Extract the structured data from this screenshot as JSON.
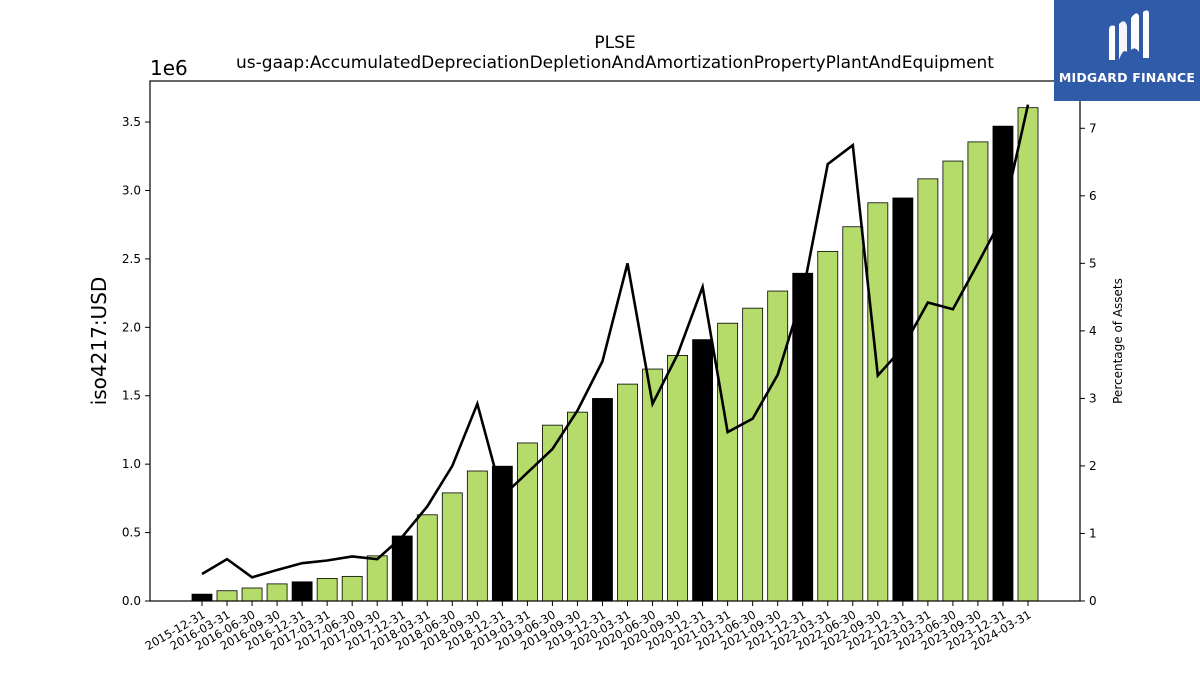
{
  "chart_data": {
    "type": "bar",
    "title": "PLSE",
    "subtitle": "us-gaap:AccumulatedDepreciationDepletionAndAmortizationPropertyPlantAndEquipment",
    "ylabel": "iso4217:USD",
    "y2label": "Percentage of Assets",
    "y_offset_label": "1e6",
    "ylim": [
      0,
      3.8
    ],
    "y2lim": [
      0,
      7.7
    ],
    "yticks": [
      0.0,
      0.5,
      1.0,
      1.5,
      2.0,
      2.5,
      3.0,
      3.5
    ],
    "ytick_labels": [
      "0.0",
      "0.5",
      "1.0",
      "1.5",
      "2.0",
      "2.5",
      "3.0",
      "3.5"
    ],
    "y2ticks": [
      0,
      1,
      2,
      3,
      4,
      5,
      6,
      7
    ],
    "y2tick_labels": [
      "0",
      "1",
      "2",
      "3",
      "4",
      "5",
      "6",
      "7"
    ],
    "categories": [
      "2015-12-31",
      "2016-03-31",
      "2016-06-30",
      "2016-09-30",
      "2016-12-31",
      "2017-03-31",
      "2017-06-30",
      "2017-09-30",
      "2017-12-31",
      "2018-03-31",
      "2018-06-30",
      "2018-09-30",
      "2018-12-31",
      "2019-03-31",
      "2019-06-30",
      "2019-09-30",
      "2019-12-31",
      "2020-03-31",
      "2020-06-30",
      "2020-09-30",
      "2020-12-31",
      "2021-03-31",
      "2021-06-30",
      "2021-09-30",
      "2021-12-31",
      "2022-03-31",
      "2022-06-30",
      "2022-09-30",
      "2022-12-31",
      "2023-03-31",
      "2023-06-30",
      "2023-09-30",
      "2023-12-31",
      "2024-03-31"
    ],
    "series": [
      {
        "type": "bar",
        "values": [
          0.05,
          0.075,
          0.095,
          0.125,
          0.14,
          0.165,
          0.18,
          0.33,
          0.475,
          0.63,
          0.79,
          0.95,
          0.985,
          1.155,
          1.285,
          1.38,
          1.48,
          1.585,
          1.695,
          1.795,
          1.91,
          2.03,
          2.14,
          2.265,
          2.395,
          2.555,
          2.735,
          2.91,
          2.945,
          3.085,
          3.215,
          3.355,
          3.47,
          3.605
        ],
        "highlight": [
          true,
          false,
          false,
          false,
          true,
          false,
          false,
          false,
          true,
          false,
          false,
          false,
          true,
          false,
          false,
          false,
          true,
          false,
          false,
          false,
          true,
          false,
          false,
          false,
          true,
          false,
          false,
          false,
          true,
          false,
          false,
          false,
          true,
          false
        ]
      },
      {
        "type": "line",
        "axis": "right",
        "values": [
          0.4,
          0.62,
          0.35,
          0.46,
          0.56,
          0.6,
          0.66,
          0.62,
          0.95,
          1.4,
          2.0,
          2.92,
          1.55,
          1.9,
          2.25,
          2.82,
          3.55,
          5.0,
          2.92,
          3.65,
          4.65,
          2.5,
          2.7,
          3.35,
          4.55,
          6.47,
          6.75,
          3.34,
          3.75,
          4.42,
          4.32,
          5.0,
          5.7,
          7.35
        ]
      }
    ],
    "colors": {
      "bar": "#b5dc6b",
      "bar_highlight": "#000000",
      "line": "#000000"
    },
    "grid": false
  },
  "logo": {
    "text": "MIDGARD FINANCE",
    "icon": "midgard-logo-icon"
  }
}
